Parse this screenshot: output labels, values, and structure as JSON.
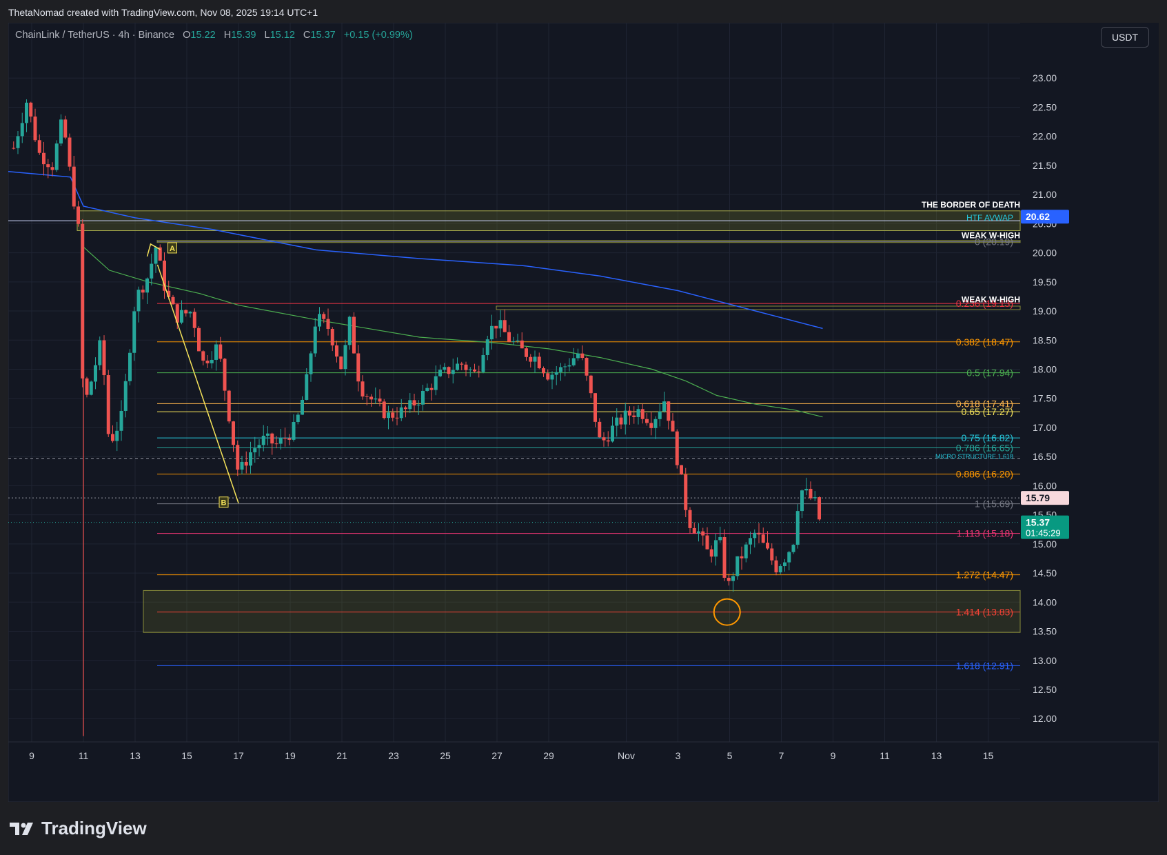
{
  "header": {
    "text": "ThetaNomad created with TradingView.com, Nov 08, 2025 19:14 UTC+1"
  },
  "legend": {
    "symbol": "ChainLink / TetherUS · 4h · Binance",
    "o_label": "O",
    "o": "15.22",
    "h_label": "H",
    "h": "15.39",
    "l_label": "L",
    "l": "15.12",
    "c_label": "C",
    "c": "15.37",
    "change": "+0.15 (+0.99%)"
  },
  "currency_button": "USDT",
  "brand": {
    "text": "TradingView"
  },
  "colors": {
    "background": "#131722",
    "grid": "#1f2433",
    "up": "#26a69a",
    "down": "#ef5350",
    "htf_avwap": "#2962ff",
    "green_avwap": "#4caf50",
    "fib_yellow": "#f5e35a"
  },
  "chart_data": {
    "type": "candlestick",
    "price_axis": {
      "range": [
        11.6,
        23.95
      ],
      "ticks": [
        "23.00",
        "22.50",
        "22.00",
        "21.50",
        "21.00",
        "20.50",
        "20.00",
        "19.50",
        "19.00",
        "18.50",
        "18.00",
        "17.50",
        "17.00",
        "16.50",
        "16.00",
        "15.50",
        "15.00",
        "14.50",
        "14.00",
        "13.50",
        "13.00",
        "12.50",
        "12.00"
      ]
    },
    "time_axis": {
      "day_ticks": [
        {
          "label": "9",
          "day": 9
        },
        {
          "label": "11",
          "day": 11
        },
        {
          "label": "13",
          "day": 13
        },
        {
          "label": "15",
          "day": 15
        },
        {
          "label": "17",
          "day": 17
        },
        {
          "label": "19",
          "day": 19
        },
        {
          "label": "21",
          "day": 21
        },
        {
          "label": "23",
          "day": 23
        },
        {
          "label": "25",
          "day": 25
        },
        {
          "label": "27",
          "day": 27
        },
        {
          "label": "29",
          "day": 29
        },
        {
          "label": "Nov",
          "day": 32
        },
        {
          "label": "3",
          "day": 34
        },
        {
          "label": "5",
          "day": 36
        },
        {
          "label": "7",
          "day": 38
        },
        {
          "label": "9",
          "day": 40
        },
        {
          "label": "11",
          "day": 42
        },
        {
          "label": "13",
          "day": 44
        },
        {
          "label": "15",
          "day": 46
        }
      ]
    },
    "price_path": [
      [
        8.3,
        21.8
      ],
      [
        8.8,
        22.6
      ],
      [
        9.3,
        21.7
      ],
      [
        9.8,
        21.5
      ],
      [
        10.2,
        22.3
      ],
      [
        10.5,
        21.3
      ],
      [
        10.8,
        20.4
      ],
      [
        11.0,
        17.3
      ],
      [
        11.3,
        17.8
      ],
      [
        11.7,
        18.5
      ],
      [
        12.0,
        16.7
      ],
      [
        12.5,
        17.2
      ],
      [
        13.0,
        19.2
      ],
      [
        13.5,
        19.6
      ],
      [
        13.8,
        20.1
      ],
      [
        14.2,
        19.3
      ],
      [
        14.6,
        18.9
      ],
      [
        15.2,
        19.0
      ],
      [
        15.6,
        18.1
      ],
      [
        16.2,
        18.4
      ],
      [
        16.6,
        17.3
      ],
      [
        17.0,
        16.2
      ],
      [
        17.5,
        16.6
      ],
      [
        18.0,
        16.8
      ],
      [
        18.5,
        16.7
      ],
      [
        19.2,
        17.0
      ],
      [
        19.6,
        17.7
      ],
      [
        20.0,
        18.9
      ],
      [
        20.5,
        18.7
      ],
      [
        21.0,
        18.0
      ],
      [
        21.3,
        18.8
      ],
      [
        21.7,
        17.7
      ],
      [
        22.3,
        17.4
      ],
      [
        22.8,
        17.2
      ],
      [
        23.5,
        17.3
      ],
      [
        24.0,
        17.5
      ],
      [
        24.8,
        17.9
      ],
      [
        25.6,
        18.1
      ],
      [
        26.2,
        17.9
      ],
      [
        26.6,
        18.6
      ],
      [
        27.0,
        18.8
      ],
      [
        27.5,
        18.5
      ],
      [
        28.0,
        18.3
      ],
      [
        28.5,
        18.2
      ],
      [
        29.0,
        17.9
      ],
      [
        29.5,
        18.0
      ],
      [
        30.2,
        18.3
      ],
      [
        30.6,
        17.6
      ],
      [
        31.0,
        16.7
      ],
      [
        31.5,
        17.0
      ],
      [
        32.0,
        17.2
      ],
      [
        32.5,
        17.3
      ],
      [
        33.0,
        17.1
      ],
      [
        33.5,
        17.5
      ],
      [
        34.0,
        16.4
      ],
      [
        34.4,
        15.4
      ],
      [
        34.8,
        15.2
      ],
      [
        35.2,
        14.8
      ],
      [
        35.6,
        15.1
      ],
      [
        35.9,
        14.2
      ],
      [
        36.2,
        14.6
      ],
      [
        36.6,
        14.9
      ],
      [
        37.0,
        15.2
      ],
      [
        37.4,
        14.9
      ],
      [
        37.8,
        14.6
      ],
      [
        38.2,
        14.8
      ],
      [
        38.5,
        15.1
      ],
      [
        38.7,
        15.95
      ],
      [
        39.0,
        15.85
      ],
      [
        39.3,
        15.7
      ],
      [
        39.5,
        15.37
      ]
    ],
    "indicators": {
      "htf_avwap": [
        [
          8.0,
          21.4
        ],
        [
          10.5,
          21.3
        ],
        [
          11.0,
          20.8
        ],
        [
          13.0,
          20.6
        ],
        [
          16.0,
          20.4
        ],
        [
          20.0,
          20.05
        ],
        [
          24.0,
          19.9
        ],
        [
          28.0,
          19.78
        ],
        [
          31.0,
          19.6
        ],
        [
          34.0,
          19.35
        ],
        [
          37.0,
          19.0
        ],
        [
          39.6,
          18.7
        ]
      ],
      "green_avwap": [
        [
          11.0,
          20.1
        ],
        [
          12.0,
          19.7
        ],
        [
          13.5,
          19.5
        ],
        [
          15.5,
          19.3
        ],
        [
          17.0,
          19.1
        ],
        [
          20.0,
          18.85
        ],
        [
          24.0,
          18.55
        ],
        [
          27.0,
          18.45
        ],
        [
          29.0,
          18.35
        ],
        [
          31.0,
          18.2
        ],
        [
          33.0,
          18.0
        ],
        [
          34.3,
          17.8
        ],
        [
          35.5,
          17.55
        ],
        [
          37.0,
          17.4
        ],
        [
          38.5,
          17.3
        ],
        [
          39.6,
          17.18
        ]
      ]
    },
    "fib_levels": [
      {
        "ratio": "0",
        "label": "0 (20.19)",
        "price": 20.19,
        "color": "#787b86"
      },
      {
        "ratio": "0.236",
        "label": "0.236 (19.13)",
        "price": 19.13,
        "color": "#f23645"
      },
      {
        "ratio": "0.382",
        "label": "0.382 (18.47)",
        "price": 18.47,
        "color": "#ff9800"
      },
      {
        "ratio": "0.5",
        "label": "0.5 (17.94)",
        "price": 17.94,
        "color": "#4caf50"
      },
      {
        "ratio": "0.618",
        "label": "0.618 (17.41)",
        "price": 17.41,
        "color": "#ffb74d"
      },
      {
        "ratio": "0.65",
        "label": "0.65 (17.27)",
        "price": 17.27,
        "color": "#f5e35a"
      },
      {
        "ratio": "0.75",
        "label": "0.75 (16.82)",
        "price": 16.82,
        "color": "#26c6da"
      },
      {
        "ratio": "0.786",
        "label": "0.786 (16.65)",
        "price": 16.65,
        "color": "#26a69a"
      },
      {
        "ratio": "0.886",
        "label": "0.886 (16.20)",
        "price": 16.2,
        "color": "#ff9800"
      },
      {
        "ratio": "1",
        "label": "1 (15.69)",
        "price": 15.69,
        "color": "#787b86"
      },
      {
        "ratio": "1.113",
        "label": "1.113 (15.18)",
        "price": 15.18,
        "color": "#f23675"
      },
      {
        "ratio": "1.272",
        "label": "1.272 (14.47)",
        "price": 14.47,
        "color": "#ff9800"
      },
      {
        "ratio": "1.414",
        "label": "1.414 (13.83)",
        "price": 13.83,
        "color": "#f44336"
      },
      {
        "ratio": "1.618",
        "label": "1.618 (12.91)",
        "price": 12.91,
        "color": "#2962ff"
      }
    ],
    "annotations": {
      "border_of_death": "THE BORDER OF DEATH",
      "htf_avwap_label": "HTF AVWAP",
      "weak_high_1": "WEAK W-HIGH",
      "weak_high_2": "WEAK W-HIGH",
      "micro_structure": "MICRO STRUCTURE 1.618",
      "point_a": "A",
      "point_b": "B"
    },
    "price_tags": {
      "avwap_value": "20.62",
      "marker_value": "15.79",
      "last_price": "15.37",
      "countdown": "01:45:29"
    }
  }
}
